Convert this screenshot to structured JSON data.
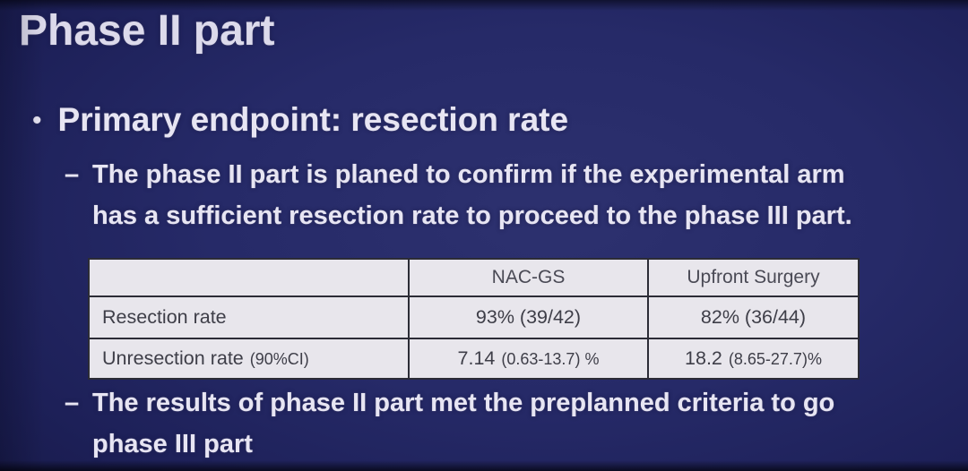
{
  "colors": {
    "background_navy": "#23276a",
    "background_edge": "#14163f",
    "text_light": "#e7e5f3",
    "table_background": "#e8e6ec",
    "table_border": "#2c2c36",
    "table_text": "#3e3e48"
  },
  "title": "Phase II part",
  "primary_bullet": {
    "marker": "•",
    "text": "Primary endpoint: resection rate"
  },
  "sub_bullet_plan": {
    "marker": "–",
    "line1": "The phase II part is planed to confirm if the experimental arm",
    "line2": "has a sufficient resection rate to proceed to the phase III part."
  },
  "table": {
    "header": {
      "col1": "",
      "col2": "NAC-GS",
      "col3": "Upfront Surgery"
    },
    "rows": [
      {
        "label_main": "Resection rate",
        "label_sub": "",
        "nac_gs_main": "93% (39/42)",
        "nac_gs_sub": "",
        "upfront_main": "82% (36/44)",
        "upfront_sub": ""
      },
      {
        "label_main": "Unresection rate",
        "label_sub": "(90%CI)",
        "nac_gs_main": "7.14",
        "nac_gs_sub": "(0.63-13.7) %",
        "upfront_main": "18.2",
        "upfront_sub": "(8.65-27.7)%"
      }
    ]
  },
  "sub_bullet_result": {
    "marker": "–",
    "line1": "The results of phase II part met the preplanned criteria to go",
    "line2": "phase III part"
  }
}
